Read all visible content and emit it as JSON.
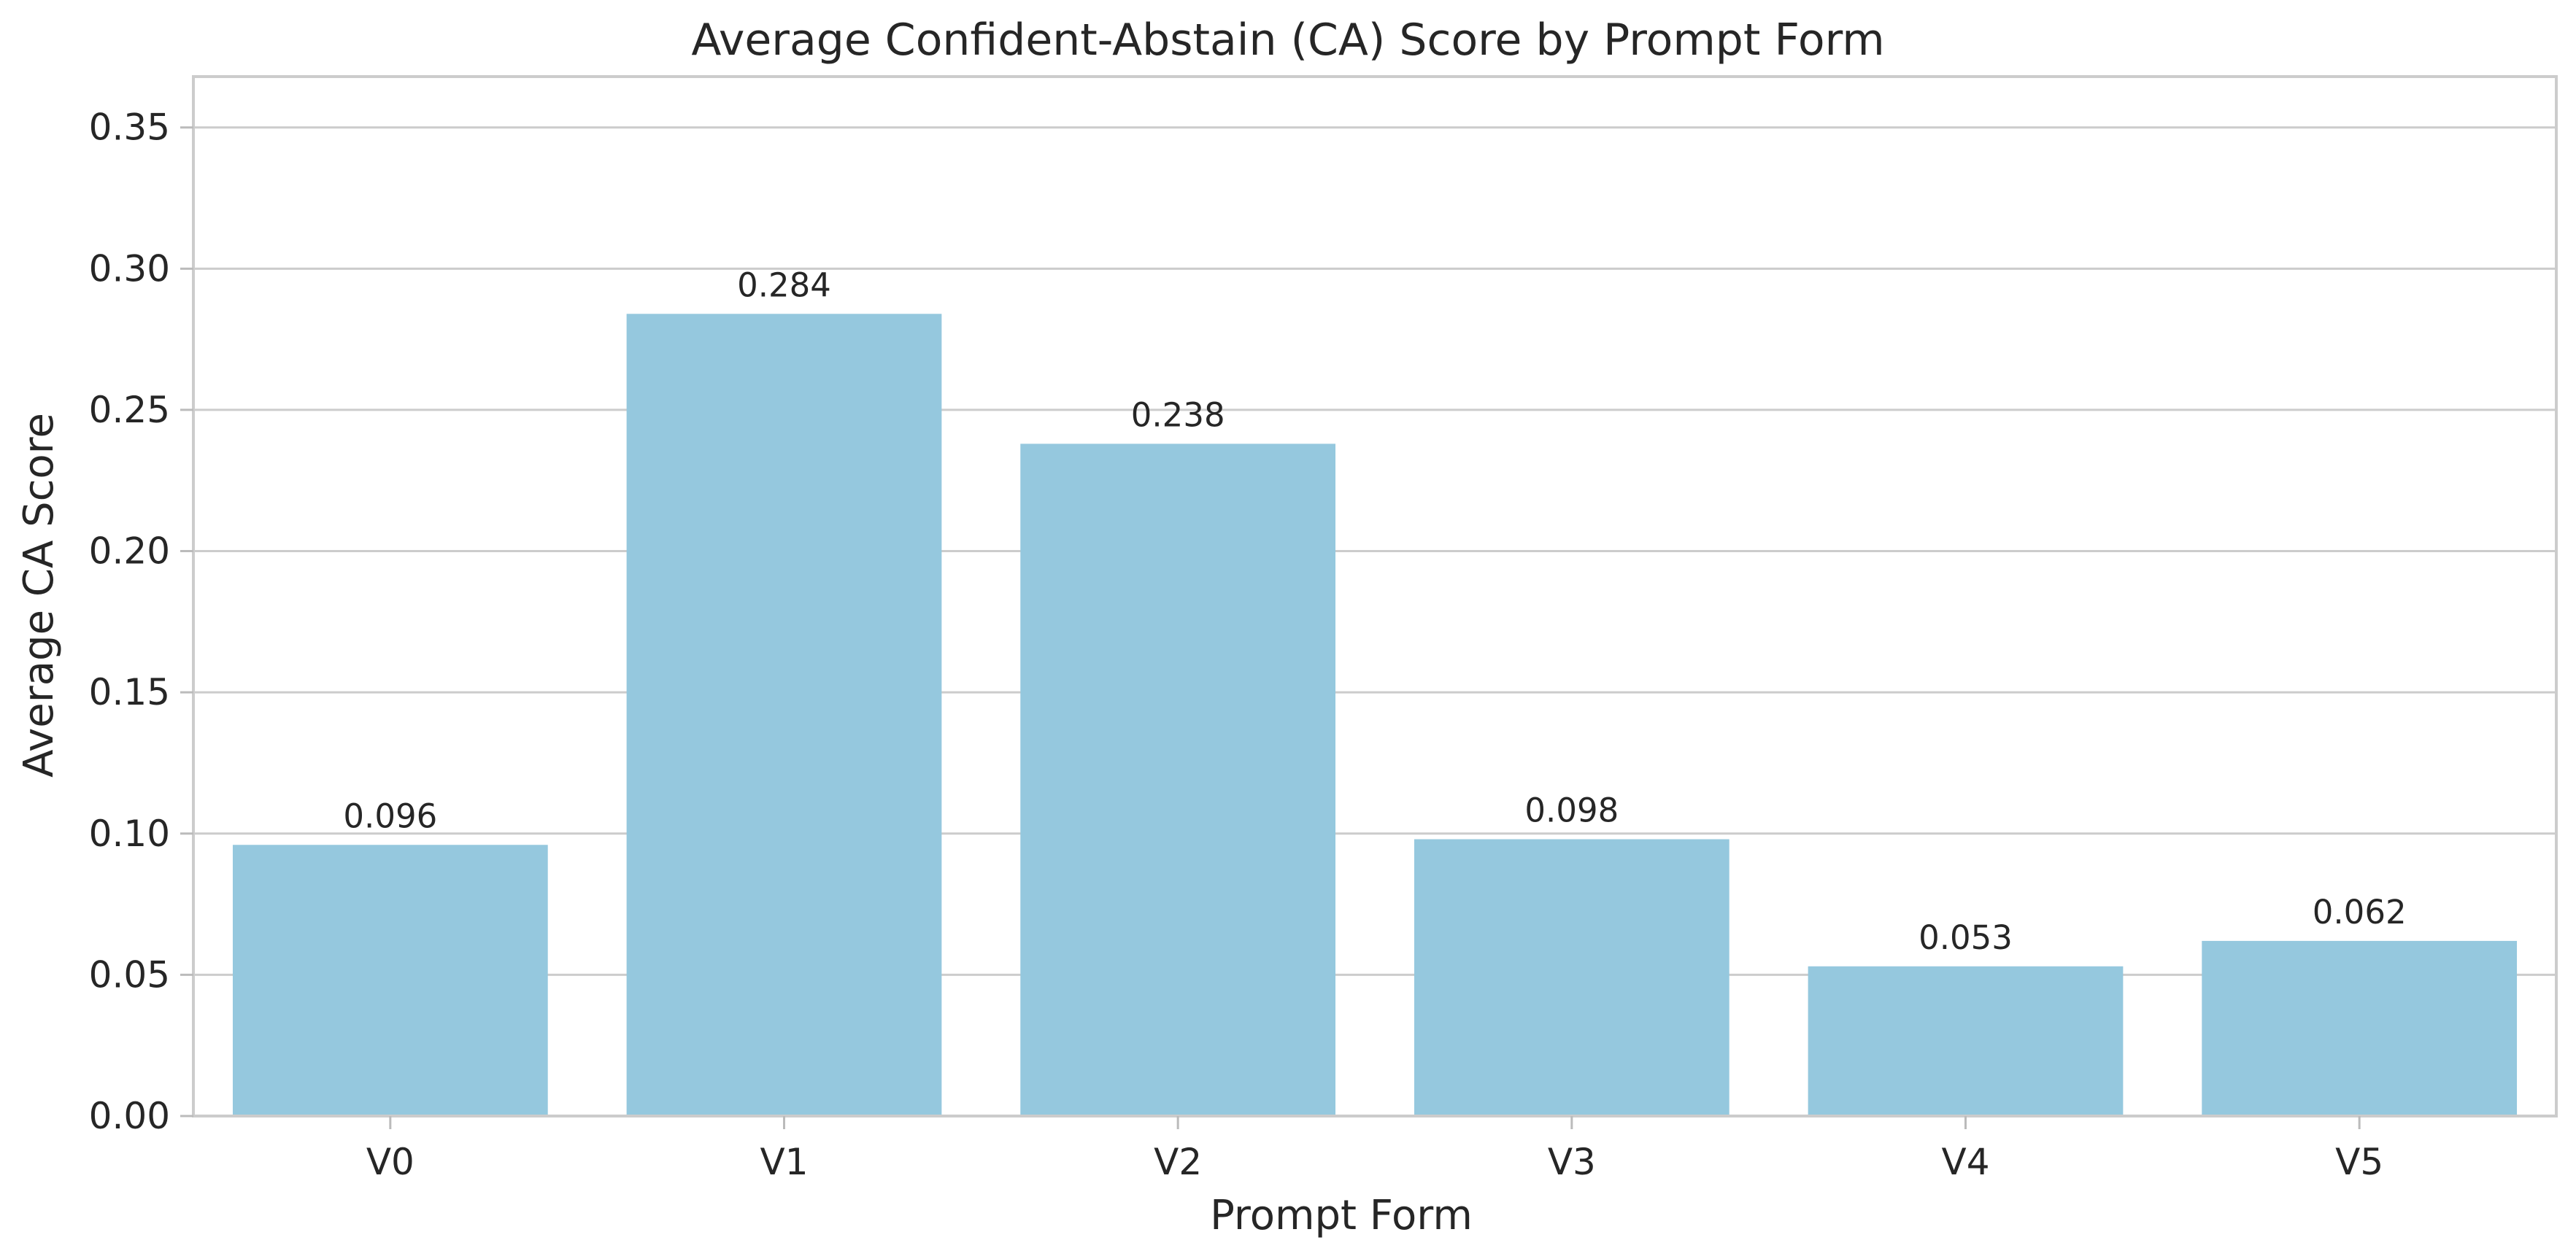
{
  "chart_data": {
    "type": "bar",
    "title": "Average Confident-Abstain (CA) Score by Prompt Form",
    "xlabel": "Prompt Form",
    "ylabel": "Average CA Score",
    "categories": [
      "V0",
      "V1",
      "V2",
      "V3",
      "V4",
      "V5"
    ],
    "values": [
      0.096,
      0.284,
      0.238,
      0.098,
      0.053,
      0.062
    ],
    "data_labels": [
      "0.096",
      "0.284",
      "0.238",
      "0.098",
      "0.053",
      "0.062"
    ],
    "ylim": [
      0,
      0.368
    ],
    "yticks": [
      0.0,
      0.05,
      0.1,
      0.15,
      0.2,
      0.25,
      0.3,
      0.35
    ],
    "ytick_labels": [
      "0.00",
      "0.05",
      "0.10",
      "0.15",
      "0.20",
      "0.25",
      "0.30",
      "0.35"
    ],
    "bar_color": "#95c8de",
    "grid": true,
    "legend": "none"
  }
}
